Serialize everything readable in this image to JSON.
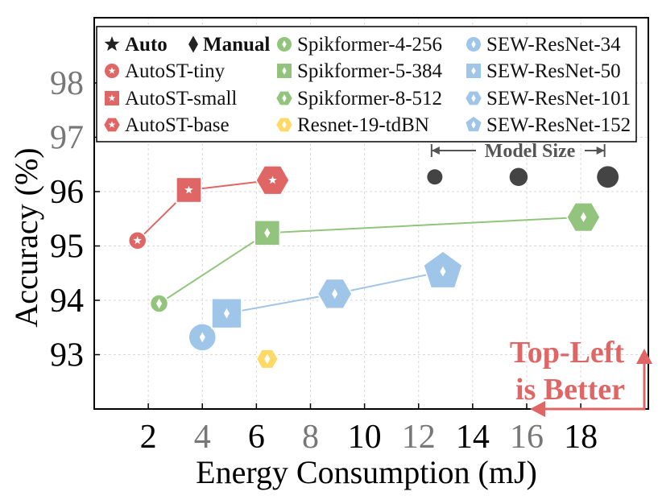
{
  "chart_data": {
    "type": "scatter",
    "xlabel": "Energy Consumption (mJ)",
    "ylabel": "Accuracy (%)",
    "xlim": [
      0,
      20.5
    ],
    "ylim": [
      92,
      99.2
    ],
    "xticks": [
      {
        "value": 2,
        "label": "2",
        "color": "#000000"
      },
      {
        "value": 4,
        "label": "4",
        "color": "#777777"
      },
      {
        "value": 6,
        "label": "6",
        "color": "#000000"
      },
      {
        "value": 8,
        "label": "8",
        "color": "#777777"
      },
      {
        "value": 10,
        "label": "10",
        "color": "#000000"
      },
      {
        "value": 12,
        "label": "12",
        "color": "#777777"
      },
      {
        "value": 14,
        "label": "14",
        "color": "#000000"
      },
      {
        "value": 16,
        "label": "16",
        "color": "#777777"
      },
      {
        "value": 18,
        "label": "18",
        "color": "#000000"
      }
    ],
    "yticks": [
      {
        "value": 93,
        "label": "93",
        "color": "#000000"
      },
      {
        "value": 94,
        "label": "94",
        "color": "#000000"
      },
      {
        "value": 95,
        "label": "95",
        "color": "#000000"
      },
      {
        "value": 96,
        "label": "96",
        "color": "#000000"
      },
      {
        "value": 97,
        "label": "97",
        "color": "#777777"
      },
      {
        "value": 98,
        "label": "98",
        "color": "#777777"
      }
    ],
    "grid": true,
    "legend": {
      "placement": "top",
      "header": [
        {
          "label": "Auto",
          "marker": "star"
        },
        {
          "label": "Manual",
          "marker": "diamond"
        }
      ],
      "entries": [
        {
          "label": "AutoST-tiny",
          "series": "AutoST",
          "marker": "circle"
        },
        {
          "label": "AutoST-small",
          "series": "AutoST",
          "marker": "square"
        },
        {
          "label": "AutoST-base",
          "series": "AutoST",
          "marker": "hexagon"
        },
        {
          "label": "Spikformer-4-256",
          "series": "Spikformer",
          "marker": "circle"
        },
        {
          "label": "Spikformer-5-384",
          "series": "Spikformer",
          "marker": "square"
        },
        {
          "label": "Spikformer-8-512",
          "series": "Spikformer",
          "marker": "hexagon"
        },
        {
          "label": "Resnet-19-tdBN",
          "series": "Resnet",
          "marker": "hexagon"
        },
        {
          "label": "SEW-ResNet-34",
          "series": "SEW",
          "marker": "circle"
        },
        {
          "label": "SEW-ResNet-50",
          "series": "SEW",
          "marker": "square"
        },
        {
          "label": "SEW-ResNet-101",
          "series": "SEW",
          "marker": "hexagon"
        },
        {
          "label": "SEW-ResNet-152",
          "series": "SEW",
          "marker": "pentagon"
        }
      ]
    },
    "series": [
      {
        "id": "AutoST",
        "color": "#e06666",
        "inner": "star",
        "points": [
          {
            "label": "AutoST-tiny",
            "x": 1.6,
            "y": 95.1,
            "marker": "circle",
            "size": 1
          },
          {
            "label": "AutoST-small",
            "x": 3.5,
            "y": 96.03,
            "marker": "square",
            "size": 2
          },
          {
            "label": "AutoST-base",
            "x": 6.6,
            "y": 96.21,
            "marker": "hexagon",
            "size": 3
          }
        ]
      },
      {
        "id": "Spikformer",
        "color": "#93c47d",
        "inner": "diamond",
        "points": [
          {
            "label": "Spikformer-4-256",
            "x": 2.4,
            "y": 93.94,
            "marker": "circle",
            "size": 1
          },
          {
            "label": "Spikformer-5-384",
            "x": 6.4,
            "y": 95.24,
            "marker": "square",
            "size": 2
          },
          {
            "label": "Spikformer-8-512",
            "x": 18.1,
            "y": 95.53,
            "marker": "hexagon",
            "size": 3
          }
        ]
      },
      {
        "id": "Resnet",
        "color": "#ffd966",
        "inner": "diamond",
        "connect": false,
        "points": [
          {
            "label": "Resnet-19-tdBN",
            "x": 6.4,
            "y": 92.92,
            "marker": "hexagon",
            "size": 1.3
          }
        ]
      },
      {
        "id": "SEW",
        "color": "#9fc5e8",
        "inner": "diamond",
        "points": [
          {
            "label": "SEW-ResNet-34",
            "x": 4.0,
            "y": 93.32,
            "marker": "circle",
            "size": 2.4
          },
          {
            "label": "SEW-ResNet-50",
            "x": 4.9,
            "y": 93.76,
            "marker": "square",
            "size": 2.8
          },
          {
            "label": "SEW-ResNet-101",
            "x": 8.9,
            "y": 94.12,
            "marker": "hexagon",
            "size": 3.2
          },
          {
            "label": "SEW-ResNet-152",
            "x": 12.9,
            "y": 94.53,
            "marker": "pentagon",
            "size": 4.2
          }
        ]
      }
    ],
    "model_size": {
      "label": "Model Size",
      "circles": [
        {
          "x": 12.6,
          "y": 96.27,
          "size": 1
        },
        {
          "x": 15.7,
          "y": 96.27,
          "size": 1.4
        },
        {
          "x": 19.0,
          "y": 96.27,
          "size": 2
        }
      ],
      "color": "#444444"
    },
    "annotation": {
      "lines": [
        "Top-Left",
        "is Better"
      ],
      "color": "#e06666"
    }
  }
}
